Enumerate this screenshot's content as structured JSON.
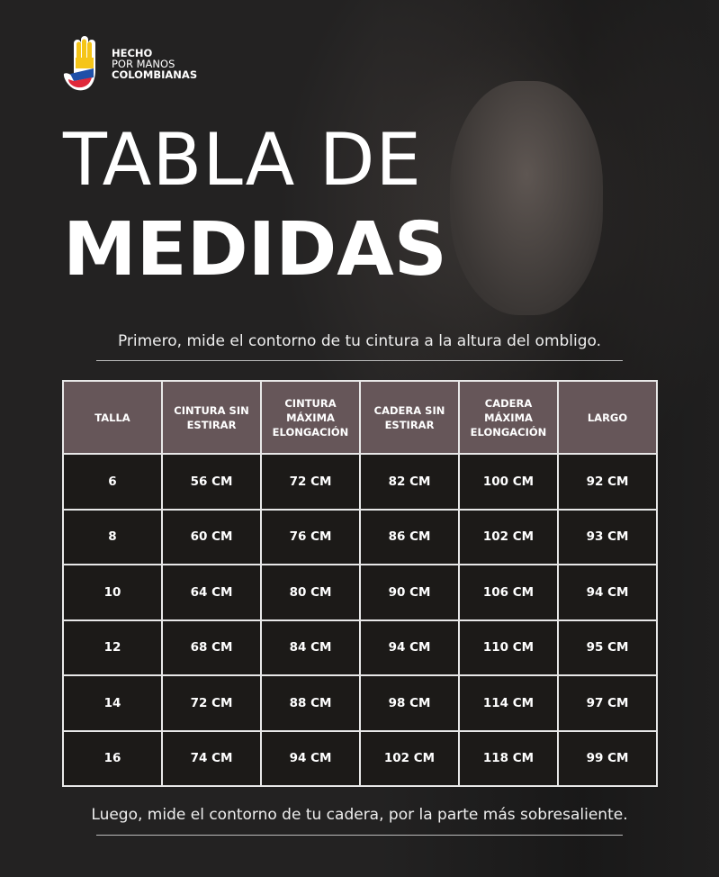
{
  "logo": {
    "line1": "HECHO",
    "line2": "POR MANOS",
    "line3": "COLOMBIANAS"
  },
  "title": {
    "line1": "TABLA DE",
    "line2": "MEDIDAS"
  },
  "note_top": "Primero, mide  el contorno de tu cintura a la altura del ombligo.",
  "note_bottom": "Luego, mide el contorno de tu cadera, por la parte más sobresaliente.",
  "colors": {
    "header_bg": "#665659",
    "cell_bg": "#1c1a18"
  },
  "table": {
    "headers": [
      "TALLA",
      "CINTURA SIN ESTIRAR",
      "CINTURA MÁXIMA ELONGACIÓN",
      "CADERA SIN ESTIRAR",
      "CADERA MÁXIMA ELONGACIÓN",
      "LARGO"
    ],
    "rows": [
      [
        "6",
        "56 CM",
        "72 CM",
        "82 CM",
        "100 CM",
        "92 CM"
      ],
      [
        "8",
        "60 CM",
        "76 CM",
        "86 CM",
        "102 CM",
        "93 CM"
      ],
      [
        "10",
        "64 CM",
        "80 CM",
        "90 CM",
        "106 CM",
        "94 CM"
      ],
      [
        "12",
        "68 CM",
        "84 CM",
        "94 CM",
        "110 CM",
        "95 CM"
      ],
      [
        "14",
        "72 CM",
        "88 CM",
        "98 CM",
        "114 CM",
        "97 CM"
      ],
      [
        "16",
        "74 CM",
        "94 CM",
        "102 CM",
        "118 CM",
        "99 CM"
      ]
    ]
  }
}
